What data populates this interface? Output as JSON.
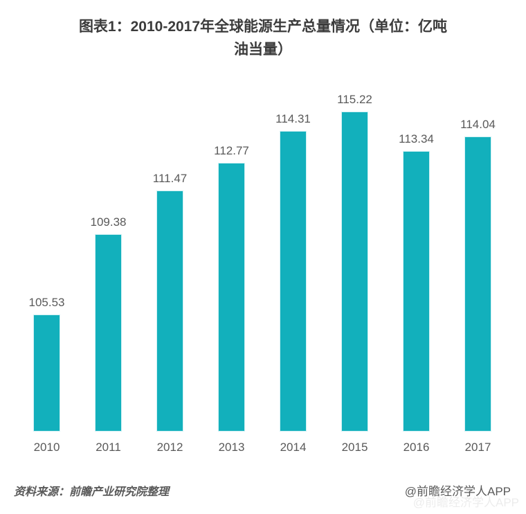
{
  "title": {
    "line1": "图表1：2010-2017年全球能源生产总量情况（单位：亿吨",
    "line2": "油当量）"
  },
  "chart_data": {
    "type": "bar",
    "title": "图表1：2010-2017年全球能源生产总量情况（单位：亿吨油当量）",
    "categories": [
      "2010",
      "2011",
      "2012",
      "2013",
      "2014",
      "2015",
      "2016",
      "2017"
    ],
    "values": [
      105.53,
      109.38,
      111.47,
      112.77,
      114.31,
      115.22,
      113.34,
      114.04
    ],
    "xlabel": "",
    "ylabel": "",
    "ylim": [
      100,
      116
    ],
    "grid": false,
    "legend": false,
    "value_labels_shown": true,
    "bar_color": "#12b0bc",
    "label_color": "#595959"
  },
  "footer": {
    "source": "资料来源：前瞻产业研究院整理",
    "credit": "@前瞻经济学人APP"
  },
  "colors": {
    "background": "#ffffff",
    "bar": "#12b0bc",
    "title_text": "#3b3b3b",
    "label_text": "#595959"
  }
}
